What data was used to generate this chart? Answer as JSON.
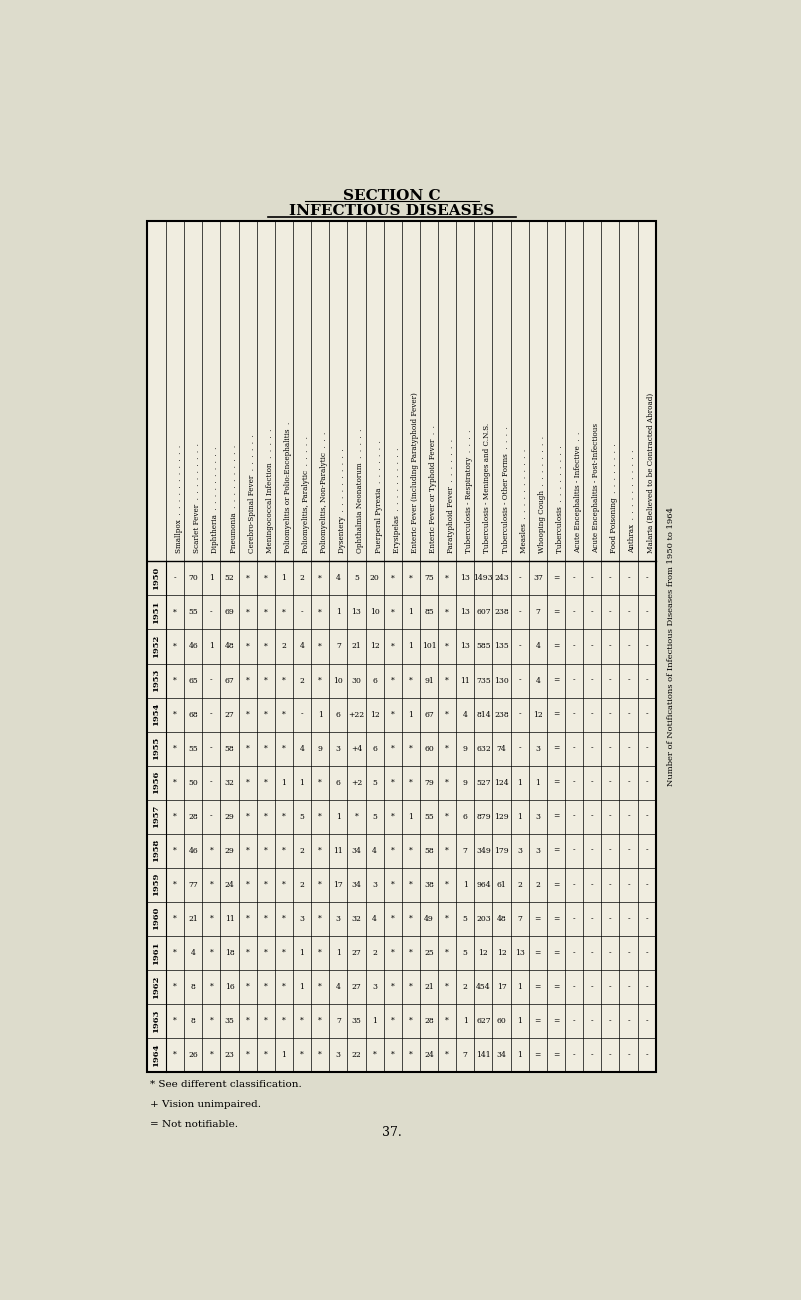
{
  "title1": "SECTION C",
  "title2": "INFECTIOUS DISEASES",
  "right_label": "Number of Notifications of Infectious Diseases from 1950 to 1964",
  "years": [
    "1950",
    "1951",
    "1952",
    "1953",
    "1954",
    "1955",
    "1956",
    "1957",
    "1958",
    "1959",
    "1960",
    "1961",
    "1962",
    "1963",
    "1964"
  ],
  "diseases": [
    "Smallpox  .  .  .  .  .  .  .  .  .  .  .",
    "Scarlet Fever  .  .  .  .  .  .  .  .  .",
    "Diphtheria  .  .  .  .  .  .  .  .  .  .",
    "Pneumonia  .  .  .  .  .  .  .  .  .  .",
    "Cerebro-Spinal Fever  .  .  .  .  .  .",
    "Meningococcal Infection  .  .  .  .  .",
    "Poliomyelitis or Polio:Encephalitis  .",
    "Poliomyelitis, Paralytic  .  .  .  .  .",
    "Poliomyelitis, Non-Paralytic  .  .  .",
    "Dysentery  .  .  .  .  .  .  .  .  .  .",
    "Ophthalmia Neonatorum  .  .  .  .  .",
    "Puerperal Pyrexia  .  .  .  .  .  .  .",
    "Erysipelas  .  .  .  .  .  .  .  .  .  .",
    "Enteric Fever (including Paratyphoid Fever)",
    "Enteric Fever or Typhoid Fever  .  .",
    "Paratyphoid Fever  .  .  .  .  .  .  .",
    "Tuberculosis - Respiratory  .  .  .  .",
    "Tuberculosis - Meninges and C.N.S.",
    "Tuberculosis - Other Forms  .  .  .  .",
    "Measles  .  .  .  .  .  .  .  .  .  .  .",
    "Whooping Cough  .  .  .  .  .  .  .  .",
    "Tuberculosis  .  .  .  .  .  .  .  .  .",
    "Acute Encephalitis - Infective  .  .",
    "Acute Encephalitis - Post-Infectious",
    "Food Poisoning  .  .  .  .  .  .  .  .",
    "Anthrax  .  .  .  .  .  .  .  .  .  .  .",
    "Malaria (Believed to be Contracted Abroad)"
  ],
  "table_data": [
    [
      "-",
      "*",
      "*",
      "*",
      "*",
      "*",
      "*",
      "*",
      "*",
      "*",
      "*",
      "*",
      "*",
      "*",
      "*"
    ],
    [
      "70",
      "55",
      "46",
      "65",
      "68",
      "55",
      "50",
      "28",
      "46",
      "77",
      "21",
      "4",
      "8",
      "8",
      "26"
    ],
    [
      "1",
      "-",
      "1",
      "-",
      "-",
      "-",
      "-",
      "-",
      "*",
      "*",
      "*",
      "*",
      "*",
      "*",
      "*"
    ],
    [
      "52",
      "69",
      "48",
      "67",
      "27",
      "58",
      "32",
      "29",
      "29",
      "24",
      "11",
      "18",
      "16",
      "35",
      "23"
    ],
    [
      "*",
      "*",
      "*",
      "*",
      "*",
      "*",
      "*",
      "*",
      "*",
      "*",
      "*",
      "*",
      "*",
      "*",
      "*"
    ],
    [
      "*",
      "*",
      "*",
      "*",
      "*",
      "*",
      "*",
      "*",
      "*",
      "*",
      "*",
      "*",
      "*",
      "*",
      "*"
    ],
    [
      "1",
      "*",
      "2",
      "*",
      "*",
      "*",
      "1",
      "*",
      "*",
      "*",
      "*",
      "*",
      "*",
      "*",
      "1"
    ],
    [
      "2",
      "-",
      "4",
      "2",
      "-",
      "4",
      "1",
      "5",
      "2",
      "2",
      "3",
      "1",
      "1",
      "*",
      "*"
    ],
    [
      "*",
      "*",
      "*",
      "*",
      "1",
      "9",
      "*",
      "*",
      "*",
      "*",
      "*",
      "*",
      "*",
      "*",
      "*"
    ],
    [
      "4",
      "1",
      "7",
      "10",
      "6",
      "3",
      "6",
      "1",
      "11",
      "17",
      "3",
      "1",
      "4",
      "7",
      "3"
    ],
    [
      "5",
      "13",
      "21",
      "30",
      "+22",
      "+4",
      "+2",
      "*",
      "34",
      "34",
      "32",
      "27",
      "27",
      "35",
      "22"
    ],
    [
      "20",
      "10",
      "12",
      "6",
      "12",
      "6",
      "5",
      "5",
      "4",
      "3",
      "4",
      "2",
      "3",
      "1",
      "*"
    ],
    [
      "*",
      "*",
      "*",
      "*",
      "*",
      "*",
      "*",
      "*",
      "*",
      "*",
      "*",
      "*",
      "*",
      "*",
      "*"
    ],
    [
      "*",
      "1",
      "1",
      "*",
      "1",
      "*",
      "*",
      "1",
      "*",
      "*",
      "*",
      "*",
      "*",
      "*",
      "*"
    ],
    [
      "75",
      "85",
      "101",
      "91",
      "67",
      "60",
      "79",
      "55",
      "58",
      "38",
      "49",
      "25",
      "21",
      "28",
      "24"
    ],
    [
      "*",
      "*",
      "*",
      "*",
      "*",
      "*",
      "*",
      "*",
      "*",
      "*",
      "*",
      "*",
      "*",
      "*",
      "*"
    ],
    [
      "13",
      "13",
      "13",
      "11",
      "4",
      "9",
      "9",
      "6",
      "7",
      "1",
      "5",
      "5",
      "2",
      "1",
      "7"
    ],
    [
      "1493",
      "607",
      "585",
      "735",
      "814",
      "632",
      "527",
      "879",
      "349",
      "964",
      "203",
      "12",
      "454",
      "627",
      "141"
    ],
    [
      "243",
      "238",
      "135",
      "130",
      "238",
      "74",
      "124",
      "129",
      "179",
      "61",
      "48",
      "12",
      "17",
      "60",
      "34"
    ],
    [
      "-",
      "-",
      "-",
      "-",
      "-",
      "-",
      "1",
      "1",
      "3",
      "2",
      "7",
      "13",
      "1",
      "1",
      "1"
    ],
    [
      "37",
      "7",
      "4",
      "4",
      "12",
      "3",
      "1",
      "3",
      "3",
      "2",
      "=",
      "=",
      "=",
      "=",
      "="
    ],
    [
      "=",
      "=",
      "=",
      "=",
      "=",
      "=",
      "=",
      "=",
      "=",
      "=",
      "=",
      "=",
      "=",
      "=",
      "="
    ],
    [
      "-",
      "-",
      "-",
      "-",
      "-",
      "-",
      "-",
      "-",
      "-",
      "-",
      "-",
      "-",
      "-",
      "-",
      "-"
    ],
    [
      "-",
      "-",
      "-",
      "-",
      "-",
      "-",
      "-",
      "-",
      "-",
      "-",
      "-",
      "-",
      "-",
      "-",
      "-"
    ],
    [
      "-",
      "-",
      "-",
      "-",
      "-",
      "-",
      "-",
      "-",
      "-",
      "-",
      "-",
      "-",
      "-",
      "-",
      "-"
    ],
    [
      "-",
      "-",
      "-",
      "-",
      "-",
      "-",
      "-",
      "-",
      "-",
      "-",
      "-",
      "-",
      "-",
      "-",
      "-"
    ],
    [
      "-",
      "-",
      "-",
      "-",
      "-",
      "-",
      "-",
      "-",
      "-",
      "-",
      "-",
      "-",
      "-",
      "-",
      "-"
    ]
  ],
  "footnotes": [
    "* See different classification.",
    "+ Vision unimpaired.",
    "= Not notifiable."
  ],
  "page_number": "37.",
  "bg_color": "#dddccc",
  "table_bg": "#f0ede0"
}
